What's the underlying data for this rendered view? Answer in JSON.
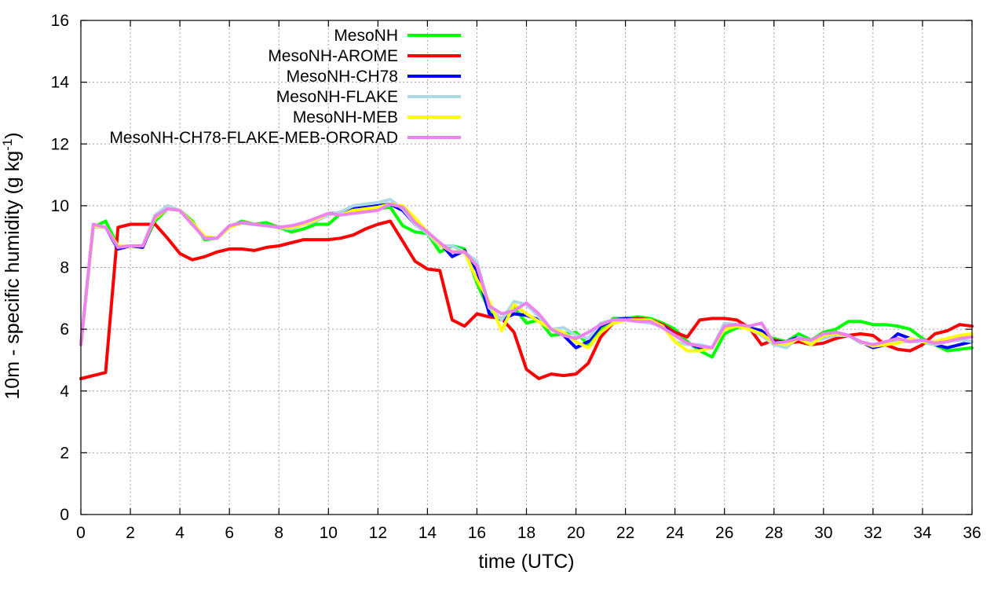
{
  "chart_data": {
    "type": "line",
    "title": "",
    "xlabel": "time (UTC)",
    "ylabel_main": "10m - specific humidity (g kg",
    "ylabel_sup": "-1",
    "ylabel_tail": ")",
    "xlim": [
      0,
      36
    ],
    "ylim": [
      0,
      16
    ],
    "xticks": [
      0,
      2,
      4,
      6,
      8,
      10,
      12,
      14,
      16,
      18,
      20,
      22,
      24,
      26,
      28,
      30,
      32,
      34,
      36
    ],
    "yticks": [
      0,
      2,
      4,
      6,
      8,
      10,
      12,
      14,
      16
    ],
    "grid": true,
    "legend_position": "top-left-inside",
    "series": [
      {
        "name": "MesoNH",
        "color": "#00ff00",
        "x": [
          0,
          0.5,
          1,
          1.5,
          2,
          2.5,
          3,
          3.5,
          4,
          4.5,
          5,
          5.5,
          6,
          6.5,
          7,
          7.5,
          8,
          8.5,
          9,
          9.5,
          10,
          10.5,
          11,
          11.5,
          12,
          12.5,
          13,
          13.5,
          14,
          14.5,
          15,
          15.5,
          16,
          16.5,
          17,
          17.5,
          18,
          18.5,
          19,
          19.5,
          20,
          20.5,
          21,
          21.5,
          22,
          22.5,
          23,
          23.5,
          24,
          24.5,
          25,
          25.5,
          26,
          26.5,
          27,
          27.5,
          28,
          28.5,
          29,
          29.5,
          30,
          30.5,
          31,
          31.5,
          32,
          32.5,
          33,
          33.5,
          34,
          34.5,
          35,
          35.5,
          36
        ],
        "values": [
          5.5,
          9.3,
          9.5,
          8.7,
          8.7,
          8.7,
          9.5,
          9.9,
          9.85,
          9.5,
          8.9,
          8.95,
          9.3,
          9.5,
          9.4,
          9.45,
          9.3,
          9.15,
          9.25,
          9.4,
          9.4,
          9.75,
          9.85,
          9.85,
          9.9,
          9.95,
          9.35,
          9.15,
          9.1,
          8.5,
          8.7,
          8.6,
          7.5,
          6.6,
          6.3,
          6.7,
          6.2,
          6.3,
          5.8,
          5.85,
          5.9,
          5.5,
          5.95,
          6.35,
          6.35,
          6.4,
          6.35,
          6.2,
          6.0,
          5.6,
          5.3,
          5.1,
          5.85,
          6.05,
          6.1,
          5.8,
          5.7,
          5.6,
          5.85,
          5.65,
          5.9,
          6.0,
          6.25,
          6.25,
          6.15,
          6.15,
          6.1,
          6.0,
          5.7,
          5.5,
          5.3,
          5.35,
          5.4
        ]
      },
      {
        "name": "MesoNH-AROME",
        "color": "#ff0000",
        "x": [
          0,
          0.5,
          1,
          1.5,
          2,
          2.5,
          3,
          3.5,
          4,
          4.5,
          5,
          5.5,
          6,
          6.5,
          7,
          7.5,
          8,
          8.5,
          9,
          9.5,
          10,
          10.5,
          11,
          11.5,
          12,
          12.5,
          13,
          13.5,
          14,
          14.5,
          15,
          15.5,
          16,
          16.5,
          17,
          17.5,
          18,
          18.5,
          19,
          19.5,
          20,
          20.5,
          21,
          21.5,
          22,
          22.5,
          23,
          23.5,
          24,
          24.5,
          25,
          25.5,
          26,
          26.5,
          27,
          27.5,
          28,
          28.5,
          29,
          29.5,
          30,
          30.5,
          31,
          31.5,
          32,
          32.5,
          33,
          33.5,
          34,
          34.5,
          35,
          35.5,
          36
        ],
        "values": [
          4.4,
          4.5,
          4.6,
          9.3,
          9.4,
          9.4,
          9.4,
          8.95,
          8.45,
          8.25,
          8.35,
          8.5,
          8.6,
          8.6,
          8.55,
          8.65,
          8.7,
          8.8,
          8.9,
          8.9,
          8.9,
          8.95,
          9.05,
          9.25,
          9.4,
          9.5,
          8.85,
          8.2,
          7.95,
          7.9,
          6.3,
          6.1,
          6.5,
          6.4,
          6.35,
          5.9,
          4.7,
          4.4,
          4.55,
          4.5,
          4.55,
          4.9,
          5.75,
          6.2,
          6.3,
          6.35,
          6.3,
          6.15,
          5.9,
          5.75,
          6.3,
          6.35,
          6.35,
          6.3,
          6.05,
          5.5,
          5.65,
          5.55,
          5.6,
          5.5,
          5.55,
          5.7,
          5.8,
          5.85,
          5.8,
          5.5,
          5.35,
          5.3,
          5.5,
          5.85,
          5.95,
          6.15,
          6.1
        ]
      },
      {
        "name": "MesoNH-CH78",
        "color": "#0000ff",
        "x": [
          0,
          0.5,
          1,
          1.5,
          2,
          2.5,
          3,
          3.5,
          4,
          4.5,
          5,
          5.5,
          6,
          6.5,
          7,
          7.5,
          8,
          8.5,
          9,
          9.5,
          10,
          10.5,
          11,
          11.5,
          12,
          12.5,
          13,
          13.5,
          14,
          14.5,
          15,
          15.5,
          16,
          16.5,
          17,
          17.5,
          18,
          18.5,
          19,
          19.5,
          20,
          20.5,
          21,
          21.5,
          22,
          22.5,
          23,
          23.5,
          24,
          24.5,
          25,
          25.5,
          26,
          26.5,
          27,
          27.5,
          28,
          28.5,
          29,
          29.5,
          30,
          30.5,
          31,
          31.5,
          32,
          32.5,
          33,
          33.5,
          34,
          34.5,
          35,
          35.5,
          36
        ],
        "values": [
          5.5,
          9.35,
          9.3,
          8.6,
          8.7,
          8.65,
          9.6,
          9.9,
          9.85,
          9.4,
          9.0,
          8.95,
          9.35,
          9.45,
          9.4,
          9.35,
          9.3,
          9.3,
          9.4,
          9.5,
          9.75,
          9.75,
          9.9,
          9.95,
          10.0,
          10.05,
          9.85,
          9.4,
          9.1,
          8.8,
          8.35,
          8.55,
          7.9,
          6.5,
          6.3,
          6.5,
          6.45,
          6.3,
          6.0,
          5.8,
          5.4,
          5.6,
          6.1,
          6.3,
          6.35,
          6.3,
          6.25,
          6.1,
          5.8,
          5.55,
          5.4,
          5.4,
          6.1,
          6.1,
          6.05,
          5.95,
          5.6,
          5.6,
          5.75,
          5.6,
          5.75,
          5.9,
          5.8,
          5.6,
          5.4,
          5.5,
          5.85,
          5.7,
          5.6,
          5.5,
          5.4,
          5.5,
          5.6
        ]
      },
      {
        "name": "MesoNH-FLAKE",
        "color": "#add8e6",
        "x": [
          0,
          0.5,
          1,
          1.5,
          2,
          2.5,
          3,
          3.5,
          4,
          4.5,
          5,
          5.5,
          6,
          6.5,
          7,
          7.5,
          8,
          8.5,
          9,
          9.5,
          10,
          10.5,
          11,
          11.5,
          12,
          12.5,
          13,
          13.5,
          14,
          14.5,
          15,
          15.5,
          16,
          16.5,
          17,
          17.5,
          18,
          18.5,
          19,
          19.5,
          20,
          20.5,
          21,
          21.5,
          22,
          22.5,
          23,
          23.5,
          24,
          24.5,
          25,
          25.5,
          26,
          26.5,
          27,
          27.5,
          28,
          28.5,
          29,
          29.5,
          30,
          30.5,
          31,
          31.5,
          32,
          32.5,
          33,
          33.5,
          34,
          34.5,
          35,
          35.5,
          36
        ],
        "values": [
          5.5,
          9.3,
          9.3,
          8.65,
          8.7,
          8.7,
          9.7,
          10.0,
          9.85,
          9.4,
          8.95,
          8.95,
          9.35,
          9.45,
          9.4,
          9.35,
          9.3,
          9.25,
          9.4,
          9.5,
          9.7,
          9.8,
          10.0,
          10.05,
          10.1,
          10.2,
          9.9,
          9.4,
          9.1,
          8.7,
          8.7,
          8.5,
          8.2,
          6.7,
          6.3,
          6.9,
          6.8,
          6.4,
          6.0,
          6.05,
          5.8,
          5.7,
          6.2,
          6.3,
          6.3,
          6.25,
          6.2,
          6.1,
          5.6,
          5.5,
          5.5,
          5.4,
          6.2,
          6.15,
          6.0,
          5.8,
          5.5,
          5.4,
          5.75,
          5.6,
          5.7,
          5.8,
          5.8,
          5.55,
          5.5,
          5.55,
          5.6,
          5.6,
          5.6,
          5.5,
          5.6,
          5.65,
          5.6
        ]
      },
      {
        "name": "MesoNH-MEB",
        "color": "#ffff00",
        "x": [
          0,
          0.5,
          1,
          1.5,
          2,
          2.5,
          3,
          3.5,
          4,
          4.5,
          5,
          5.5,
          6,
          6.5,
          7,
          7.5,
          8,
          8.5,
          9,
          9.5,
          10,
          10.5,
          11,
          11.5,
          12,
          12.5,
          13,
          13.5,
          14,
          14.5,
          15,
          15.5,
          16,
          16.5,
          17,
          17.5,
          18,
          18.5,
          19,
          19.5,
          20,
          20.5,
          21,
          21.5,
          22,
          22.5,
          23,
          23.5,
          24,
          24.5,
          25,
          25.5,
          26,
          26.5,
          27,
          27.5,
          28,
          28.5,
          29,
          29.5,
          30,
          30.5,
          31,
          31.5,
          32,
          32.5,
          33,
          33.5,
          34,
          34.5,
          35,
          35.5,
          36
        ],
        "values": [
          5.5,
          9.35,
          9.3,
          8.7,
          8.7,
          8.7,
          9.6,
          9.9,
          9.85,
          9.45,
          9.0,
          8.95,
          9.3,
          9.45,
          9.4,
          9.35,
          9.3,
          9.3,
          9.4,
          9.55,
          9.75,
          9.7,
          9.85,
          9.9,
          9.95,
          10.05,
          10.0,
          9.6,
          9.15,
          8.75,
          8.5,
          8.5,
          7.6,
          6.9,
          5.95,
          6.8,
          6.5,
          6.25,
          6.0,
          5.9,
          5.6,
          5.4,
          5.9,
          6.2,
          6.3,
          6.3,
          6.3,
          6.1,
          5.6,
          5.3,
          5.3,
          5.4,
          6.0,
          6.1,
          6.0,
          5.85,
          5.55,
          5.5,
          5.7,
          5.5,
          5.8,
          5.85,
          5.8,
          5.6,
          5.45,
          5.5,
          5.55,
          5.7,
          5.6,
          5.6,
          5.7,
          5.8,
          5.85
        ]
      },
      {
        "name": "MesoNH-CH78-FLAKE-MEB-ORORAD",
        "color": "#ee82ee",
        "x": [
          0,
          0.5,
          1,
          1.5,
          2,
          2.5,
          3,
          3.5,
          4,
          4.5,
          5,
          5.5,
          6,
          6.5,
          7,
          7.5,
          8,
          8.5,
          9,
          9.5,
          10,
          10.5,
          11,
          11.5,
          12,
          12.5,
          13,
          13.5,
          14,
          14.5,
          15,
          15.5,
          16,
          16.5,
          17,
          17.5,
          18,
          18.5,
          19,
          19.5,
          20,
          20.5,
          21,
          21.5,
          22,
          22.5,
          23,
          23.5,
          24,
          24.5,
          25,
          25.5,
          26,
          26.5,
          27,
          27.5,
          28,
          28.5,
          29,
          29.5,
          30,
          30.5,
          31,
          31.5,
          32,
          32.5,
          33,
          33.5,
          34,
          34.5,
          35,
          35.5,
          36
        ],
        "values": [
          5.5,
          9.4,
          9.3,
          8.65,
          8.7,
          8.7,
          9.65,
          9.9,
          9.85,
          9.4,
          8.95,
          8.95,
          9.35,
          9.45,
          9.4,
          9.35,
          9.3,
          9.35,
          9.45,
          9.6,
          9.75,
          9.7,
          9.75,
          9.8,
          9.85,
          10.05,
          9.95,
          9.45,
          9.15,
          8.8,
          8.5,
          8.5,
          8.05,
          6.75,
          6.5,
          6.6,
          6.85,
          6.5,
          6.0,
          5.8,
          5.7,
          5.9,
          6.15,
          6.3,
          6.3,
          6.25,
          6.25,
          6.05,
          5.8,
          5.55,
          5.45,
          5.4,
          6.1,
          6.15,
          6.1,
          6.2,
          5.55,
          5.6,
          5.7,
          5.65,
          5.85,
          5.9,
          5.8,
          5.6,
          5.5,
          5.6,
          5.7,
          5.6,
          5.65,
          5.55,
          5.6,
          5.7,
          5.75
        ]
      }
    ]
  }
}
